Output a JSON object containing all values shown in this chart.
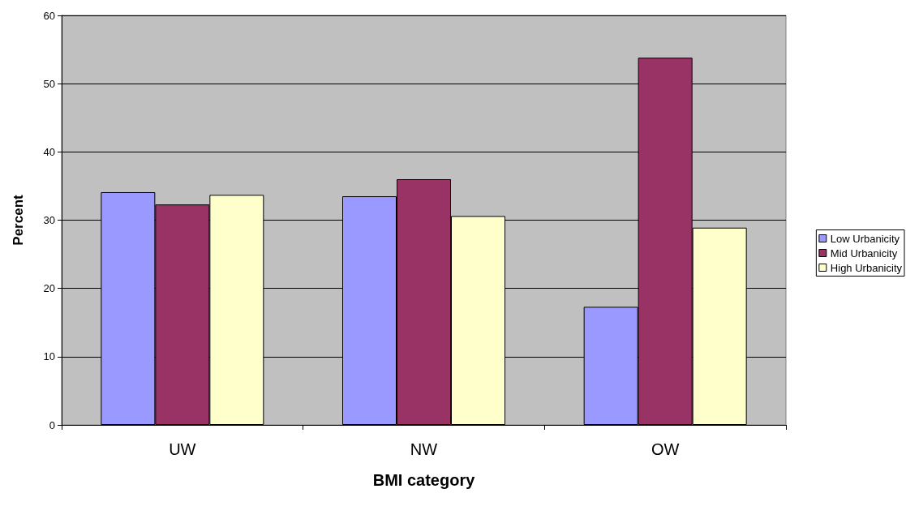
{
  "chart_data": {
    "type": "bar",
    "xlabel": "BMI category",
    "ylabel": "Percent",
    "categories": [
      "UW",
      "NW",
      "OW"
    ],
    "series": [
      {
        "name": "Low Urbanicity",
        "color": "#9999ff",
        "values": [
          34.1,
          33.5,
          17.3
        ]
      },
      {
        "name": "Mid Urbanicity",
        "color": "#993366",
        "values": [
          32.3,
          36.0,
          53.8
        ]
      },
      {
        "name": "High Urbanicity",
        "color": "#ffffcc",
        "values": [
          33.7,
          30.6,
          28.9
        ]
      }
    ],
    "ylim": [
      0,
      60
    ],
    "yticks": [
      0,
      10,
      20,
      30,
      40,
      50,
      60
    ],
    "grid": "y",
    "legend": "right"
  }
}
